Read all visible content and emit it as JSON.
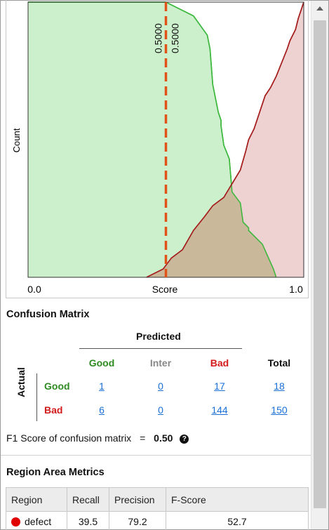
{
  "chart_data": {
    "type": "area",
    "xlabel": "Score",
    "ylabel": "Count",
    "x_tick_labels": [
      "0.0",
      "1.0"
    ],
    "xlim": [
      0.0,
      1.0
    ],
    "ylim": [
      0,
      1
    ],
    "threshold_labels": [
      "0.5000",
      "0.5000"
    ],
    "threshold": 0.5,
    "series": [
      {
        "color_fill": "#ccefcc",
        "color_line": "#3fb83f",
        "x": [
          0.0,
          0.5,
          0.6,
          0.65,
          0.66,
          0.67,
          0.69,
          0.7,
          0.7,
          0.71,
          0.73,
          0.74,
          0.77,
          0.78,
          0.8,
          0.8,
          0.85,
          0.89,
          0.9
        ],
        "y": [
          1.0,
          1.0,
          0.95,
          0.88,
          0.83,
          0.7,
          0.6,
          0.57,
          0.55,
          0.48,
          0.43,
          0.31,
          0.27,
          0.2,
          0.18,
          0.17,
          0.12,
          0.03,
          0.0
        ]
      },
      {
        "color_fill": "#eac5c5",
        "color_line": "#a51e1e",
        "x": [
          0.43,
          0.49,
          0.52,
          0.56,
          0.6,
          0.64,
          0.67,
          0.71,
          0.74,
          0.77,
          0.79,
          0.8,
          0.82,
          0.84,
          0.86,
          0.88,
          0.9,
          0.92,
          0.94,
          0.95,
          0.97,
          0.98,
          0.99,
          1.0
        ],
        "y": [
          0.0,
          0.03,
          0.07,
          0.1,
          0.17,
          0.22,
          0.26,
          0.29,
          0.34,
          0.39,
          0.46,
          0.5,
          0.54,
          0.6,
          0.66,
          0.69,
          0.73,
          0.78,
          0.83,
          0.86,
          0.9,
          0.94,
          0.97,
          1.0
        ]
      }
    ]
  },
  "confusion_matrix": {
    "title": "Confusion Matrix",
    "predicted_label": "Predicted",
    "actual_label": "Actual",
    "columns": [
      "Good",
      "Inter",
      "Bad",
      "Total"
    ],
    "rows": [
      {
        "label": "Good",
        "values": [
          "1",
          "0",
          "17",
          "18"
        ]
      },
      {
        "label": "Bad",
        "values": [
          "6",
          "0",
          "144",
          "150"
        ]
      }
    ],
    "f1_label": "F1 Score of confusion matrix",
    "f1_equals": "=",
    "f1_value": "0.50",
    "help_glyph": "?",
    "colors": {
      "good": "#2e8b22",
      "inter": "#888888",
      "bad": "#d31a1a"
    }
  },
  "region_metrics": {
    "title": "Region Area Metrics",
    "headers": [
      "Region",
      "Recall",
      "Precision",
      "F-Score"
    ],
    "rows": [
      {
        "region": "defect",
        "dot_color": "#e00000",
        "recall": "39.5",
        "precision": "79.2",
        "fscore": "52.7"
      }
    ]
  }
}
